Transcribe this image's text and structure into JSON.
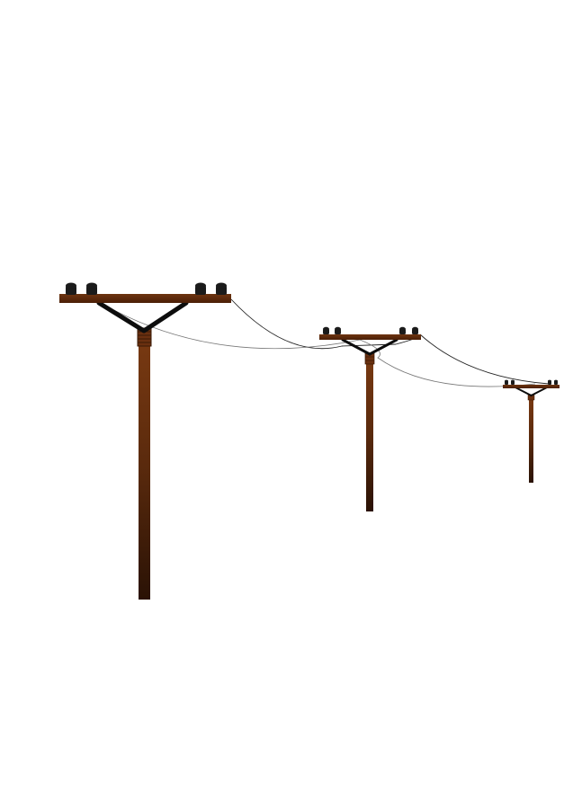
{
  "scene": {
    "subject": "utility-poles-with-power-lines",
    "background_color": "#ffffff",
    "pole_count": 3,
    "wire_count": 2,
    "insulators_per_pole": 4,
    "colors": {
      "wood_light": "#7a3a12",
      "wood_mid": "#5a2a0d",
      "wood_dark": "#2a1205",
      "crossarm": "#5e2a0a",
      "insulator": "#1b1b1b",
      "brace": "#0d0d0d",
      "wire_primary": "#222222",
      "wire_secondary": "#777777"
    }
  }
}
